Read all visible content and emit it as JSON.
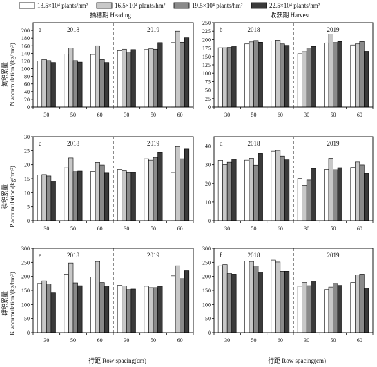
{
  "legend": {
    "items": [
      {
        "label": "13.5×10⁴ plants/hm²",
        "color": "#ffffff"
      },
      {
        "label": "16.5×10⁴ plants/hm²",
        "color": "#c8c8c8"
      },
      {
        "label": "19.5×10⁴ plants/hm²",
        "color": "#8a8a8a"
      },
      {
        "label": "22.5×10⁴ plants/hm²",
        "color": "#3a3a3a"
      }
    ]
  },
  "column_titles": [
    "抽穗期 Heading",
    "收获期 Harvest"
  ],
  "row_ylabels": [
    {
      "cn": "氮积累量",
      "en": "N accumulation/(kg/hm²)"
    },
    {
      "cn": "磷积累量",
      "en": "P accumulation/(kg/hm²)"
    },
    {
      "cn": "钾积累量",
      "en": "K accumulation/(kg/hm²)"
    }
  ],
  "xlabel": "行距 Row spacing(cm)",
  "chart_data": [
    {
      "type": "bar",
      "panel": "a",
      "years": [
        "2018",
        "2019"
      ],
      "categories": [
        "30",
        "50",
        "60",
        "30",
        "50",
        "60"
      ],
      "ylim": [
        0,
        220
      ],
      "yticks": [
        0,
        20,
        40,
        60,
        80,
        100,
        120,
        140,
        160,
        180,
        200
      ],
      "series": [
        {
          "name": "13.5×10⁴ plants/hm²",
          "values": [
            120,
            138,
            137,
            147,
            150,
            168
          ]
        },
        {
          "name": "16.5×10⁴ plants/hm²",
          "values": [
            124,
            154,
            160,
            151,
            152,
            198
          ]
        },
        {
          "name": "19.5×10⁴ plants/hm²",
          "values": [
            121,
            121,
            124,
            143,
            151,
            169
          ]
        },
        {
          "name": "22.5×10⁴ plants/hm²",
          "values": [
            116,
            117,
            116,
            150,
            168,
            181
          ]
        }
      ]
    },
    {
      "type": "bar",
      "panel": "b",
      "years": [
        "2018",
        "2019"
      ],
      "categories": [
        "30",
        "50",
        "60",
        "30",
        "50",
        "60"
      ],
      "ylim": [
        0,
        250
      ],
      "yticks": [
        0,
        25,
        50,
        75,
        100,
        125,
        150,
        175,
        200,
        225,
        250
      ],
      "series": [
        {
          "name": "13.5×10⁴ plants/hm²",
          "values": [
            176,
            187,
            196,
            158,
            190,
            184
          ]
        },
        {
          "name": "16.5×10⁴ plants/hm²",
          "values": [
            176,
            193,
            198,
            164,
            216,
            187
          ]
        },
        {
          "name": "19.5×10⁴ plants/hm²",
          "values": [
            177,
            197,
            187,
            175,
            191,
            194
          ]
        },
        {
          "name": "22.5×10⁴ plants/hm²",
          "values": [
            181,
            192,
            183,
            180,
            194,
            165
          ]
        }
      ]
    },
    {
      "type": "bar",
      "panel": "c",
      "years": [
        "2018",
        "2019"
      ],
      "categories": [
        "30",
        "50",
        "60",
        "30",
        "50",
        "60"
      ],
      "ylim": [
        0,
        30
      ],
      "yticks": [
        0,
        5,
        10,
        15,
        20,
        25,
        30
      ],
      "series": [
        {
          "name": "13.5×10⁴ plants/hm²",
          "values": [
            16.3,
            18.9,
            17.6,
            18.3,
            22.1,
            17.2
          ]
        },
        {
          "name": "16.5×10⁴ plants/hm²",
          "values": [
            16.5,
            22.4,
            20.8,
            17.8,
            21.6,
            26.5
          ]
        },
        {
          "name": "19.5×10⁴ plants/hm²",
          "values": [
            16.0,
            17.5,
            19.9,
            17.1,
            22.6,
            22.1
          ]
        },
        {
          "name": "22.5×10⁴ plants/hm²",
          "values": [
            14.1,
            17.7,
            17.0,
            17.2,
            24.3,
            25.6
          ]
        }
      ]
    },
    {
      "type": "bar",
      "panel": "d",
      "years": [
        "2018",
        "2019"
      ],
      "categories": [
        "30",
        "50",
        "60",
        "30",
        "50",
        "60"
      ],
      "ylim": [
        0,
        45
      ],
      "yticks": [
        0,
        10,
        20,
        30,
        40
      ],
      "series": [
        {
          "name": "13.5×10⁴ plants/hm²",
          "values": [
            32.3,
            32.4,
            37.2,
            22.6,
            27.5,
            28.5
          ]
        },
        {
          "name": "16.5×10⁴ plants/hm²",
          "values": [
            30.1,
            33.4,
            37.6,
            19.0,
            33.4,
            31.4
          ]
        },
        {
          "name": "19.5×10⁴ plants/hm²",
          "values": [
            31.3,
            29.8,
            34.6,
            21.8,
            27.3,
            29.9
          ]
        },
        {
          "name": "22.5×10⁴ plants/hm²",
          "values": [
            32.9,
            36.0,
            32.6,
            28.0,
            28.4,
            25.3
          ]
        }
      ]
    },
    {
      "type": "bar",
      "panel": "e",
      "years": [
        "2018",
        "2019"
      ],
      "categories": [
        "30",
        "50",
        "60",
        "30",
        "50",
        "60"
      ],
      "ylim": [
        0,
        300
      ],
      "yticks": [
        0,
        50,
        100,
        150,
        200,
        250,
        300
      ],
      "series": [
        {
          "name": "13.5×10⁴ plants/hm²",
          "values": [
            175,
            208,
            198,
            168,
            165,
            202
          ]
        },
        {
          "name": "16.5×10⁴ plants/hm²",
          "values": [
            184,
            248,
            253,
            166,
            160,
            238
          ]
        },
        {
          "name": "19.5×10⁴ plants/hm²",
          "values": [
            173,
            177,
            178,
            153,
            160,
            192
          ]
        },
        {
          "name": "22.5×10⁴ plants/hm²",
          "values": [
            141,
            167,
            166,
            155,
            165,
            220
          ]
        }
      ]
    },
    {
      "type": "bar",
      "panel": "f",
      "years": [
        "2018",
        "2019"
      ],
      "categories": [
        "30",
        "50",
        "60",
        "30",
        "50",
        "60"
      ],
      "ylim": [
        0,
        300
      ],
      "yticks": [
        0,
        50,
        100,
        150,
        200,
        250,
        300
      ],
      "series": [
        {
          "name": "13.5×10⁴ plants/hm²",
          "values": [
            238,
            255,
            258,
            165,
            153,
            178
          ]
        },
        {
          "name": "16.5×10⁴ plants/hm²",
          "values": [
            242,
            253,
            251,
            178,
            162,
            205
          ]
        },
        {
          "name": "19.5×10⁴ plants/hm²",
          "values": [
            210,
            237,
            218,
            167,
            175,
            208
          ]
        },
        {
          "name": "22.5×10⁴ plants/hm²",
          "values": [
            208,
            215,
            218,
            183,
            168,
            158
          ]
        }
      ]
    }
  ]
}
